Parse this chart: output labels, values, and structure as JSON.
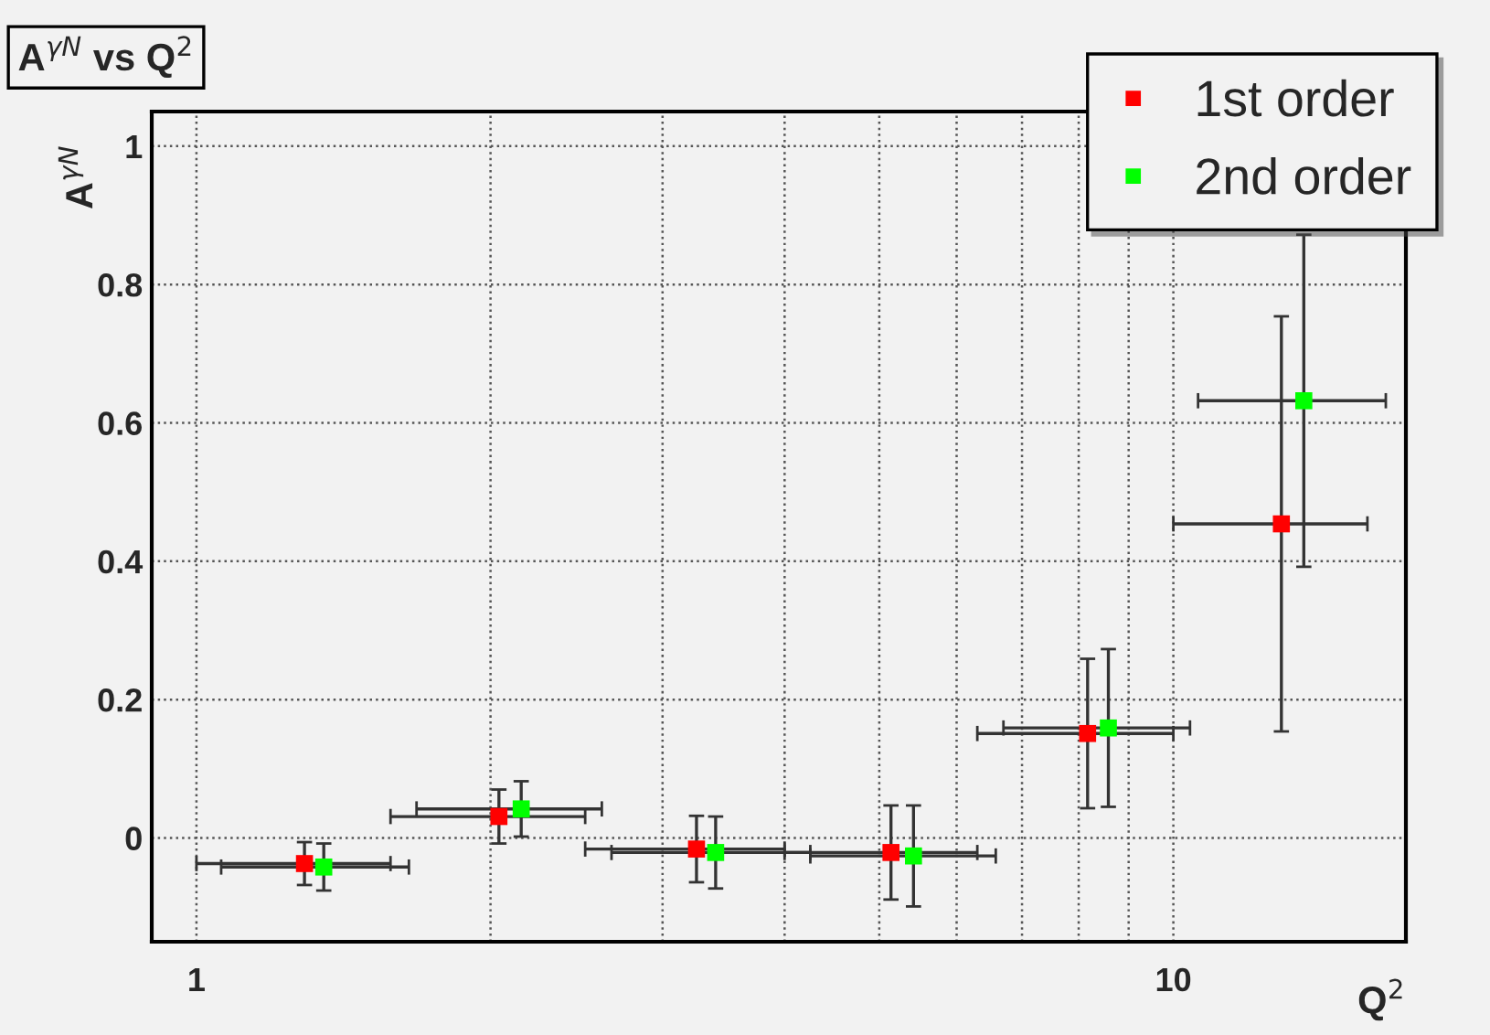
{
  "chart_data": {
    "type": "scatter",
    "title": "A$^{γN}$ vs Q$^{2}$",
    "xlabel": "Q$^{2}$",
    "ylabel": "A$^{γN}$",
    "log": "x",
    "xlim": [
      0.9,
      17.3
    ],
    "ylim": [
      -0.15,
      1.05
    ],
    "xticks": [
      1,
      {
        "value": 2,
        "label": null
      },
      {
        "value": 3,
        "label": null
      },
      {
        "value": 4,
        "label": null
      },
      {
        "value": 5,
        "label": null
      },
      {
        "value": 6,
        "label": null
      },
      {
        "value": 7,
        "label": null
      },
      {
        "value": 8,
        "label": null
      },
      {
        "value": 9,
        "label": null
      },
      10
    ],
    "yticks": [
      0,
      0.2,
      0.4,
      0.6,
      0.8,
      1
    ],
    "grid": true,
    "legend": "top right",
    "marker": "square",
    "series": [
      {
        "name": "1st order",
        "color": "#ff0000",
        "x": [
          1.29,
          2.04,
          3.25,
          5.14,
          8.17,
          12.9
        ],
        "values": [
          -0.037,
          0.031,
          -0.016,
          -0.021,
          0.151,
          0.454
        ],
        "errors": [
          0.031,
          0.039,
          0.048,
          0.068,
          0.108,
          0.3
        ],
        "xerrors": [
          [
            1.0,
            1.58
          ],
          [
            1.58,
            2.5
          ],
          [
            2.5,
            4.0
          ],
          [
            4.0,
            6.3
          ],
          [
            6.3,
            10.0
          ],
          [
            10.0,
            15.8
          ]
        ]
      },
      {
        "name": "2nd order",
        "color": "#00ff00",
        "x": [
          1.35,
          2.15,
          3.4,
          5.42,
          8.58,
          13.6
        ],
        "values": [
          -0.042,
          0.042,
          -0.021,
          -0.026,
          0.159,
          0.632
        ],
        "errors": [
          0.034,
          0.04,
          0.052,
          0.073,
          0.114,
          0.24
        ],
        "xerrors": [
          [
            1.06,
            1.65
          ],
          [
            1.68,
            2.6
          ],
          [
            2.66,
            4.25
          ],
          [
            4.25,
            6.58
          ],
          [
            6.7,
            10.4
          ],
          [
            10.6,
            16.5
          ]
        ]
      }
    ]
  }
}
